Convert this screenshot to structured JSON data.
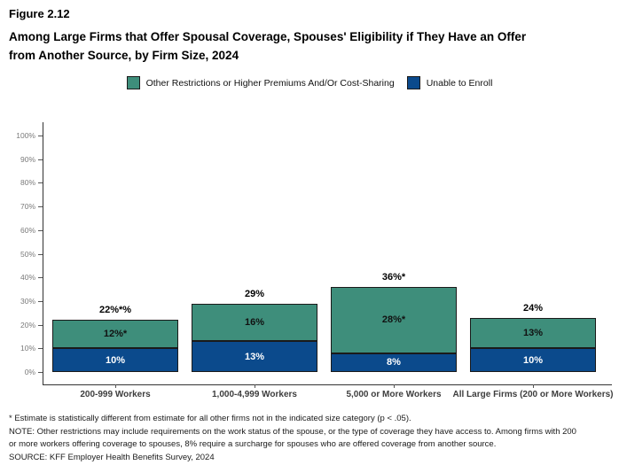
{
  "figure_label": "Figure 2.12",
  "title_line1": "Among Large Firms that Offer Spousal Coverage, Spouses' Eligibility if They Have an Offer",
  "title_line2": "from Another Source, by Firm Size, 2024",
  "colors": {
    "green": "#3E8E7B",
    "blue": "#0B4A8C",
    "bar_border": "#1a1a1a",
    "axis": "#333333"
  },
  "legend": [
    {
      "name": "green-series",
      "label": "Other Restrictions or Higher Premiums And/Or Cost-Sharing",
      "color": "#3E8E7B"
    },
    {
      "name": "blue-series",
      "label": "Unable to Enroll",
      "color": "#0B4A8C"
    }
  ],
  "chart_data": {
    "type": "bar",
    "stacked": true,
    "title": "Among Large Firms that Offer Spousal Coverage, Spouses' Eligibility if They Have an Offer from Another Source, by Firm Size, 2024",
    "categories": [
      "200-999 Workers",
      "1,000-4,999 Workers",
      "5,000 or More Workers",
      "All Large Firms (200 or More Workers)"
    ],
    "series": [
      {
        "name": "Unable to Enroll",
        "color": "#0B4A8C",
        "values": [
          10,
          13,
          8,
          10
        ],
        "labels": [
          "10%",
          "13%",
          "8%",
          "10%"
        ],
        "label_color": "#ffffff"
      },
      {
        "name": "Other Restrictions or Higher Premiums And/Or Cost-Sharing",
        "color": "#3E8E7B",
        "values": [
          12,
          16,
          28,
          13
        ],
        "labels": [
          "12%*",
          "16%",
          "28%*",
          "13%"
        ],
        "label_color": "#111111"
      }
    ],
    "totals": [
      "22%*%",
      "29%",
      "36%*",
      "24%"
    ],
    "xlabel": "",
    "ylabel": "",
    "ylim": [
      0,
      100
    ],
    "y_ticks": [
      "0%",
      "10%",
      "20%",
      "30%",
      "40%",
      "50%",
      "60%",
      "70%",
      "80%",
      "90%",
      "100%"
    ],
    "grid": false,
    "legend_position": "top-center"
  },
  "footnotes": [
    "* Estimate is statistically different from estimate for all other firms not in the indicated size category (p < .05).",
    "NOTE: Other restrictions may include requirements on the work status of the spouse, or the type of coverage they have access to. Among firms with 200",
    "or more workers offering coverage to spouses, 8% require a surcharge for spouses who are offered coverage from another source.",
    "SOURCE: KFF Employer Health Benefits Survey, 2024"
  ]
}
